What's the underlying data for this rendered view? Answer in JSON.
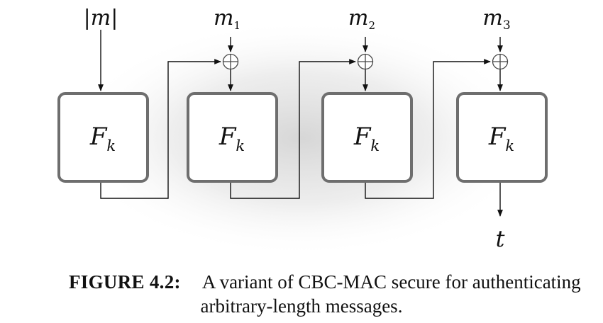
{
  "diagram": {
    "inputs": {
      "length_label": "|m|",
      "m1": {
        "base": "m",
        "sub": "1"
      },
      "m2": {
        "base": "m",
        "sub": "2"
      },
      "m3": {
        "base": "m",
        "sub": "3"
      }
    },
    "block": {
      "base": "F",
      "sub": "k"
    },
    "output_label": "t",
    "xor_symbol": "⊕"
  },
  "caption": {
    "label": "FIGURE 4.2",
    "separator": ":",
    "line1_text": "A variant of CBC-MAC secure for authenticating",
    "line2_text": "arbitrary-length messages."
  }
}
